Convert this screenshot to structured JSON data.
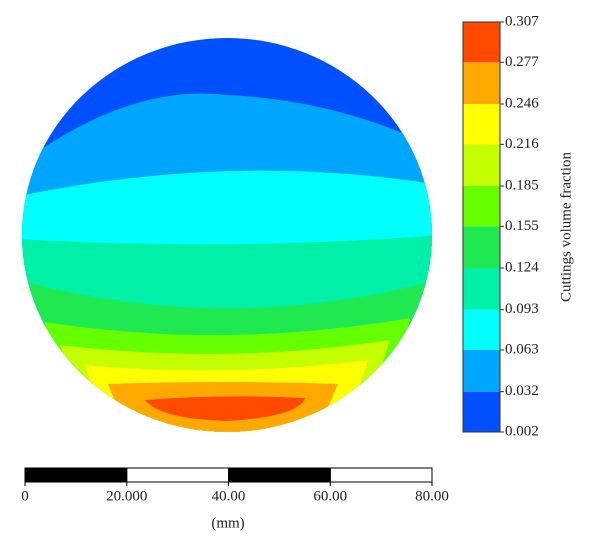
{
  "chart_data": {
    "type": "contour",
    "colorbar_label": "Cuttings volume fraction",
    "zlim": [
      0.002,
      0.307
    ],
    "zticks": [
      0.002,
      0.032,
      0.063,
      0.093,
      0.124,
      0.155,
      0.185,
      0.216,
      0.246,
      0.277,
      0.307
    ],
    "colors": [
      "#0050ff",
      "#00a6ff",
      "#00ffff",
      "#00f0a8",
      "#20e850",
      "#66ff00",
      "#c4ff00",
      "#ffff00",
      "#ffa800",
      "#ff4a00"
    ],
    "xlabel": "(mm)",
    "xlim": [
      0,
      80
    ],
    "xticks": [
      0,
      {
        "value": 20,
        "label": "20.000"
      },
      {
        "value": 40,
        "label": "40.00"
      },
      {
        "value": 60,
        "label": "60.00"
      },
      {
        "value": 80,
        "label": "80.00"
      }
    ]
  }
}
